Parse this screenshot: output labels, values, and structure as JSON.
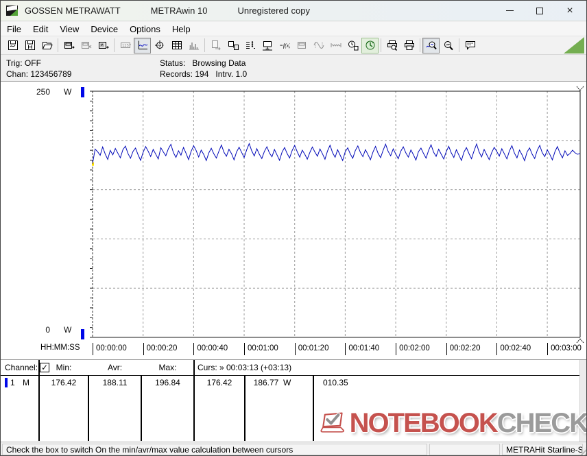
{
  "title_bar": {
    "app_name": "GOSSEN METRAWATT",
    "program": "METRAwin 10",
    "license": "Unregistered copy",
    "close_glyph": "×"
  },
  "menu": [
    "File",
    "Edit",
    "View",
    "Device",
    "Options",
    "Help"
  ],
  "toolbar": [
    {
      "icon": "save-curve-icon",
      "state": "normal"
    },
    {
      "icon": "save-data-icon",
      "state": "normal"
    },
    {
      "icon": "open-file-icon",
      "state": "normal"
    },
    {
      "sep": true
    },
    {
      "icon": "read-device-icon",
      "state": "normal"
    },
    {
      "icon": "stop-read-icon",
      "state": "disabled"
    },
    {
      "icon": "read-memory-icon",
      "state": "normal"
    },
    {
      "sep": true
    },
    {
      "icon": "lcd-view-icon",
      "state": "disabled"
    },
    {
      "icon": "chart-view-icon",
      "state": "active"
    },
    {
      "icon": "cursor-view-icon",
      "state": "normal"
    },
    {
      "icon": "table-view-icon",
      "state": "normal"
    },
    {
      "icon": "histogram-view-icon",
      "state": "disabled"
    },
    {
      "sep": true
    },
    {
      "icon": "export-icon",
      "state": "disabled"
    },
    {
      "icon": "send-device-icon",
      "state": "normal"
    },
    {
      "icon": "channel-list-icon",
      "state": "normal"
    },
    {
      "icon": "pc-connect-icon",
      "state": "normal"
    },
    {
      "icon": "formula-icon",
      "state": "normal"
    },
    {
      "icon": "device-config-icon",
      "state": "disabled"
    },
    {
      "icon": "analog-wave-icon",
      "state": "disabled"
    },
    {
      "icon": "sample-wave-icon",
      "state": "disabled"
    },
    {
      "icon": "time-setup-icon",
      "state": "normal"
    },
    {
      "icon": "timer-run-icon",
      "state": "green"
    },
    {
      "sep": true
    },
    {
      "icon": "print-preview-icon",
      "state": "normal"
    },
    {
      "icon": "print-icon",
      "state": "normal"
    },
    {
      "sep": true
    },
    {
      "icon": "zoom-time-icon",
      "state": "active"
    },
    {
      "icon": "zoom-free-icon",
      "state": "normal"
    },
    {
      "sep": true
    },
    {
      "icon": "note-icon",
      "state": "normal"
    }
  ],
  "info": {
    "trig_label": "Trig:",
    "trig_value": "OFF",
    "chan_label": "Chan:",
    "chan_value": "123456789",
    "status_label": "Status:",
    "status_value": "Browsing Data",
    "records_label": "Records:",
    "records_value": "194",
    "intrv_label": "Intrv.",
    "intrv_value": "1.0"
  },
  "chart_data": {
    "type": "line",
    "unit": "W",
    "y_max_label": "250",
    "y_min_label": "0",
    "ylim": [
      0,
      250
    ],
    "x_axis_label": "HH:MM:SS",
    "x_ticks": [
      "00:00:00",
      "00:00:20",
      "00:00:40",
      "00:01:00",
      "00:01:20",
      "00:01:40",
      "00:02:00",
      "00:02:20",
      "00:02:40",
      "00:03:00"
    ],
    "interval_s": 1.0,
    "records": 194,
    "cursor2_time_s": 193,
    "grid": true,
    "line_color": "#0008b8",
    "series": [
      {
        "name": "Channel 1 (W)",
        "values": [
          176.4,
          191.2,
          188.5,
          184.9,
          193.4,
          186.2,
          180.8,
          189.9,
          185.3,
          191.8,
          187.1,
          182.4,
          190.6,
          194.2,
          186.8,
          181.9,
          188.7,
          192.3,
          185.6,
          179.8,
          187.9,
          193.8,
          189.2,
          183.7,
          190.9,
          186.1,
          181.2,
          192.6,
          188.3,
          184.5,
          191.5,
          196.0,
          187.6,
          182.8,
          189.5,
          185.0,
          192.9,
          186.9,
          180.5,
          188.9,
          194.6,
          189.8,
          183.2,
          190.2,
          185.8,
          179.5,
          187.3,
          192.0,
          186.4,
          182.1,
          189.1,
          195.3,
          188.0,
          183.9,
          191.0,
          186.6,
          180.2,
          188.4,
          193.1,
          187.8,
          182.6,
          190.4,
          196.8,
          189.4,
          184.2,
          191.7,
          186.0,
          181.6,
          188.8,
          193.6,
          187.2,
          183.4,
          190.8,
          185.4,
          179.9,
          188.1,
          192.8,
          186.7,
          182.2,
          189.7,
          194.9,
          188.6,
          183.0,
          190.1,
          185.9,
          181.0,
          187.7,
          193.3,
          188.2,
          184.0,
          191.3,
          186.5,
          180.9,
          189.3,
          195.1,
          187.5,
          182.9,
          190.5,
          185.2,
          179.6,
          188.5,
          192.5,
          186.3,
          181.8,
          189.6,
          194.4,
          187.9,
          183.5,
          190.7,
          185.7,
          180.4,
          188.2,
          193.9,
          187.0,
          182.5,
          190.0,
          196.2,
          188.9,
          184.4,
          191.4,
          186.2,
          181.4,
          189.0,
          193.5,
          187.4,
          183.1,
          190.3,
          185.5,
          180.0,
          188.6,
          192.2,
          186.8,
          182.0,
          189.9,
          195.6,
          188.1,
          183.8,
          191.1,
          186.0,
          181.1,
          188.7,
          194.0,
          187.3,
          182.7,
          190.6,
          185.1,
          179.7,
          188.0,
          192.7,
          186.6,
          181.5,
          189.4,
          196.4,
          188.4,
          183.3,
          190.9,
          185.6,
          180.6,
          187.8,
          193.0,
          188.8,
          184.1,
          191.6,
          186.4,
          181.3,
          189.2,
          194.7,
          187.1,
          182.3,
          190.2,
          185.3,
          179.4,
          188.3,
          192.4,
          186.1,
          181.7,
          189.8,
          195.0,
          187.6,
          183.6,
          190.4,
          185.8,
          180.3,
          188.5,
          193.7,
          187.2,
          182.4,
          189.5,
          184.8,
          186.8,
          190.1,
          187.4,
          185.9,
          186.77
        ]
      }
    ]
  },
  "table": {
    "header": {
      "channel": "Channel:",
      "checkbox_glyph": "✓",
      "min": "Min:",
      "avr": "Avr:",
      "max": "Max:",
      "curs": "Curs: » 00:03:13 (+03:13)"
    },
    "row": {
      "channel": "1",
      "mode": "M",
      "min": "176.42",
      "avr": "188.11",
      "max": "196.84",
      "curs1": "176.42",
      "curs2": "186.77",
      "unit": "W",
      "delta": "010.35"
    }
  },
  "watermark": {
    "text_red": "NOTEBOOK",
    "text_gray": "CHECK",
    "red": "#c5524e",
    "gray": "#9b9b9b"
  },
  "status_bar": {
    "message": "Check the box to switch On the min/avr/max value calculation between cursors",
    "middle": "",
    "device": "METRAHit Starline-Seri"
  }
}
